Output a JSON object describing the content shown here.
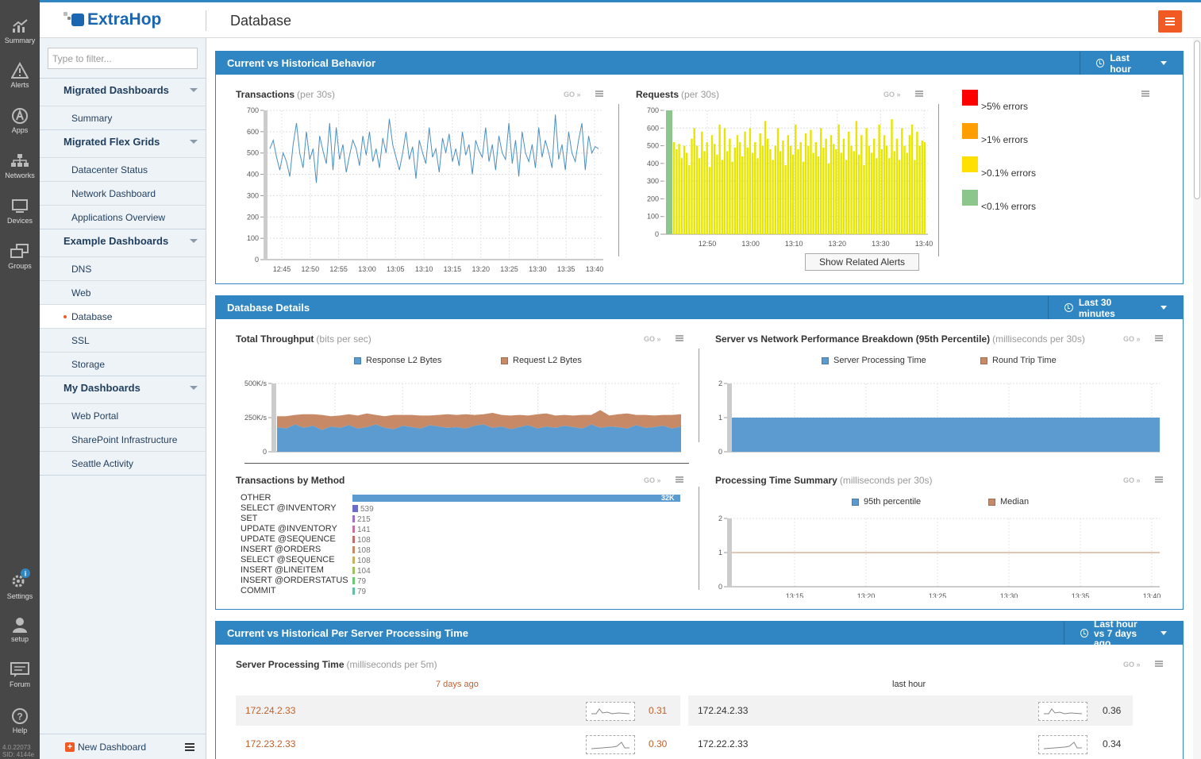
{
  "rail": {
    "items": [
      {
        "label": "Summary",
        "icon": "summary-icon"
      },
      {
        "label": "Alerts",
        "icon": "alerts-icon"
      },
      {
        "label": "Apps",
        "icon": "apps-icon"
      },
      {
        "label": "Networks",
        "icon": "networks-icon"
      },
      {
        "label": "Devices",
        "icon": "devices-icon"
      },
      {
        "label": "Groups",
        "icon": "groups-icon"
      },
      {
        "label": "Settings",
        "icon": "settings-icon"
      },
      {
        "label": "setup",
        "icon": "setup-icon"
      },
      {
        "label": "Forum",
        "icon": "forum-icon"
      },
      {
        "label": "Help",
        "icon": "help-icon"
      }
    ],
    "version": "4.0.22073",
    "sid": "SID: 4144e"
  },
  "header": {
    "logo": "ExtraHop",
    "title": "Database"
  },
  "sidebar": {
    "filter_placeholder": "Type to filter...",
    "groups": [
      {
        "label": "Migrated Dashboards",
        "items": [
          "Summary"
        ]
      },
      {
        "label": "Migrated Flex Grids",
        "items": [
          "Datacenter Status",
          "Network Dashboard",
          "Applications Overview"
        ]
      },
      {
        "label": "Example Dashboards",
        "items": [
          "DNS",
          "Web",
          "Database",
          "SSL",
          "Storage"
        ]
      },
      {
        "label": "My Dashboards",
        "items": [
          "Web Portal",
          "SharePoint Infrastructure",
          "Seattle Activity"
        ]
      }
    ],
    "active_item": "Database",
    "new_dashboard": "New Dashboard"
  },
  "region1": {
    "title": "Current vs Historical Behavior",
    "time": "Last hour",
    "transactions": {
      "title": "Transactions",
      "unit": "(per 30s)",
      "chart_data": {
        "type": "line",
        "y_ticks": [
          "700",
          "600",
          "500",
          "400",
          "300",
          "200",
          "100",
          "0"
        ],
        "x_ticks": [
          "12:45",
          "12:50",
          "12:55",
          "13:00",
          "13:05",
          "13:10",
          "13:15",
          "13:20",
          "13:25",
          "13:30",
          "13:35",
          "13:40"
        ],
        "ylim": [
          0,
          700
        ],
        "values": [
          520,
          560,
          480,
          420,
          500,
          460,
          390,
          540,
          640,
          500,
          430,
          600,
          470,
          520,
          360,
          580,
          510,
          450,
          640,
          420,
          620,
          470,
          540,
          410,
          490,
          560,
          520,
          440,
          580,
          490,
          600,
          460,
          520,
          430,
          570,
          500,
          660,
          540,
          480,
          420,
          500,
          600,
          470,
          530,
          380,
          560,
          500,
          450,
          620,
          480,
          520,
          410,
          570,
          500,
          590,
          460,
          520,
          440,
          600,
          490,
          540,
          400,
          560,
          510,
          480,
          620,
          460,
          540,
          420,
          580,
          500,
          470,
          640,
          450,
          560,
          390,
          600,
          500,
          460,
          540,
          430,
          620,
          480,
          560,
          500,
          430,
          680,
          470,
          540,
          420,
          600,
          500,
          460,
          560,
          640,
          420,
          580,
          500,
          530,
          520
        ]
      },
      "go": "GO"
    },
    "requests": {
      "title": "Requests",
      "unit": "(per 30s)",
      "chart_data": {
        "type": "bar",
        "y_ticks": [
          "700",
          "600",
          "500",
          "400",
          "300",
          "200",
          "100",
          "0"
        ],
        "x_ticks": [
          "12:50",
          "13:00",
          "13:10",
          "13:20",
          "13:30",
          "13:40"
        ],
        "ylim": [
          0,
          700
        ],
        "values": [
          520,
          480,
          510,
          430,
          500,
          460,
          390,
          540,
          600,
          500,
          430,
          580,
          470,
          520,
          380,
          560,
          510,
          450,
          620,
          420,
          600,
          470,
          540,
          410,
          490,
          560,
          520,
          440,
          580,
          490,
          600,
          460,
          520,
          430,
          570,
          500,
          640,
          540,
          480,
          420,
          500,
          600,
          470,
          530,
          390,
          560,
          500,
          450,
          620,
          480,
          520,
          410,
          570,
          500,
          590,
          460,
          520,
          440,
          600,
          490,
          540,
          400,
          560,
          510,
          480,
          620,
          460,
          540,
          420,
          580,
          500,
          470,
          640,
          450,
          560,
          390,
          600,
          500,
          460,
          540,
          430,
          620,
          480,
          560,
          500,
          430,
          650,
          470,
          540,
          420,
          600,
          500,
          460,
          560,
          620,
          420,
          580,
          500,
          530,
          520
        ],
        "bar_color": "#e6e600"
      },
      "go": "GO",
      "alerts_button": "Show Related Alerts"
    },
    "error_legend": [
      {
        "label": ">5% errors",
        "color": "#ff0000"
      },
      {
        "label": ">1% errors",
        "color": "#ff9e00"
      },
      {
        "label": ">0.1% errors",
        "color": "#ffe000"
      },
      {
        "label": "<0.1% errors",
        "color": "#8cc68c"
      }
    ]
  },
  "region2": {
    "title": "Database Details",
    "time": "Last 30 minutes",
    "throughput": {
      "title": "Total Throughput",
      "unit": "(bits per sec)",
      "go": "GO",
      "chart_data": {
        "type": "area",
        "series": [
          {
            "name": "Response L2 Bytes",
            "color": "#5b9bd0",
            "values": [
              180,
              170,
              200,
              175,
              190,
              160,
              185,
              175,
              195,
              170,
              180,
              200,
              175,
              165,
              190,
              180,
              170,
              195,
              185,
              175,
              180,
              170,
              190,
              200,
              175,
              185,
              165,
              180,
              195,
              170,
              185,
              175,
              190,
              180,
              170,
              200,
              175,
              185,
              180,
              170,
              195,
              175,
              180,
              190,
              170,
              185
            ]
          },
          {
            "name": "Request L2 Bytes",
            "color": "#c88a66",
            "values": [
              80,
              90,
              70,
              100,
              85,
              110,
              75,
              90,
              80,
              95,
              100,
              70,
              85,
              105,
              80,
              90,
              95,
              70,
              85,
              100,
              90,
              105,
              80,
              75,
              110,
              85,
              100,
              90,
              70,
              105,
              95,
              90,
              80,
              85,
              100,
              70,
              130,
              80,
              95,
              110,
              75,
              95,
              85,
              80,
              100,
              90
            ]
          }
        ],
        "y_ticks": [
          "500K/s",
          "250K/s",
          "0"
        ],
        "x_ticks": [
          "13:15",
          "13:20",
          "13:25",
          "13:30",
          "13:35",
          "13:40"
        ],
        "ylim": [
          0,
          500
        ]
      }
    },
    "breakdown": {
      "title": "Server vs Network Performance Breakdown (95th Percentile)",
      "unit": "(milliseconds per 30s)",
      "go": "GO",
      "chart_data": {
        "type": "area",
        "series": [
          {
            "name": "Server Processing Time",
            "color": "#5b9bd0",
            "value": 1
          },
          {
            "name": "Round Trip Time",
            "color": "#c88a66",
            "value": 0
          }
        ],
        "y_ticks": [
          "2",
          "1",
          "0"
        ],
        "x_ticks": [
          "13:15",
          "13:20",
          "13:25",
          "13:30",
          "13:35",
          "13:40"
        ],
        "ylim": [
          0,
          2
        ]
      }
    },
    "methods": {
      "title": "Transactions by Method",
      "go": "GO",
      "chart_data": {
        "type": "bar",
        "categories": [
          "OTHER",
          "SELECT @INVENTORY",
          "SET",
          "UPDATE @INVENTORY",
          "UPDATE @SEQUENCE",
          "INSERT @ORDERS",
          "SELECT @SEQUENCE",
          "INSERT @LINEITEM",
          "INSERT @ORDERSTATUS",
          "COMMIT"
        ],
        "values": [
          32000,
          539,
          215,
          141,
          108,
          108,
          108,
          104,
          79,
          79
        ],
        "labels": [
          "32K",
          "539",
          "215",
          "141",
          "108",
          "108",
          "108",
          "104",
          "79",
          "79"
        ],
        "colors": [
          "#5b9bd0",
          "#6b6bc8",
          "#a070c8",
          "#c870a0",
          "#c86b6b",
          "#c88a66",
          "#c8b060",
          "#a0c060",
          "#6bc870",
          "#60c0a0"
        ]
      }
    },
    "proc_summary": {
      "title": "Processing Time Summary",
      "unit": "(milliseconds per 30s)",
      "go": "GO",
      "chart_data": {
        "type": "line",
        "series": [
          {
            "name": "95th percentile",
            "color": "#5b9bd0",
            "value": 1
          },
          {
            "name": "Median",
            "color": "#c88a66",
            "value": 1
          }
        ],
        "y_ticks": [
          "2",
          "1",
          "0"
        ],
        "x_ticks": [
          "13:15",
          "13:20",
          "13:25",
          "13:30",
          "13:35",
          "13:40"
        ],
        "ylim": [
          0,
          2
        ]
      }
    }
  },
  "region3": {
    "title": "Current vs Historical Per Server Processing Time",
    "time_line1": "Last hour",
    "time_line2": "vs 7 days ago",
    "widget": {
      "title": "Server Processing Time",
      "unit": "(milliseconds per 5m)",
      "go": "GO",
      "left_head": "7 days ago",
      "right_head": "last hour",
      "left_rows": [
        {
          "ip": "172.24.2.33",
          "value": "0.31"
        },
        {
          "ip": "172.23.2.33",
          "value": "0.30"
        }
      ],
      "right_rows": [
        {
          "ip": "172.24.2.33",
          "value": "0.36"
        },
        {
          "ip": "172.22.2.33",
          "value": "0.34"
        }
      ]
    }
  }
}
